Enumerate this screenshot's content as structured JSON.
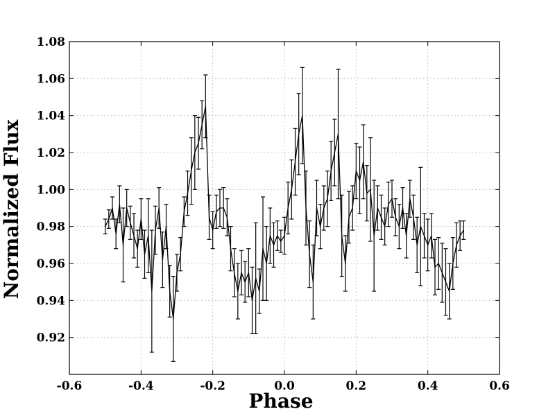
{
  "chart_data": {
    "type": "line",
    "title": "",
    "xlabel": "Phase",
    "ylabel": "Normalized Flux",
    "xlim": [
      -0.6,
      0.6
    ],
    "ylim": [
      0.9,
      1.08
    ],
    "xticks": [
      -0.6,
      -0.4,
      -0.2,
      0.0,
      0.2,
      0.4,
      0.6
    ],
    "xtick_labels": [
      "-0.6",
      "-0.4",
      "-0.2",
      "0.0",
      "0.2",
      "0.4",
      "0.6"
    ],
    "yticks": [
      0.92,
      0.94,
      0.96,
      0.98,
      1.0,
      1.02,
      1.04,
      1.06,
      1.08
    ],
    "ytick_labels": [
      "0.92",
      "0.94",
      "0.96",
      "0.98",
      "1.00",
      "1.02",
      "1.04",
      "1.06",
      "1.08"
    ],
    "grid": true,
    "line_color": "#000000",
    "error_bars": true,
    "series": [
      {
        "x": [
          -0.5,
          -0.49,
          -0.48,
          -0.47,
          -0.46,
          -0.45,
          -0.44,
          -0.43,
          -0.42,
          -0.41,
          -0.4,
          -0.39,
          -0.38,
          -0.37,
          -0.36,
          -0.35,
          -0.34,
          -0.33,
          -0.32,
          -0.31,
          -0.3,
          -0.29,
          -0.28,
          -0.27,
          -0.26,
          -0.25,
          -0.24,
          -0.23,
          -0.22,
          -0.21,
          -0.2,
          -0.19,
          -0.18,
          -0.17,
          -0.16,
          -0.15,
          -0.14,
          -0.13,
          -0.12,
          -0.11,
          -0.1,
          -0.09,
          -0.08,
          -0.07,
          -0.06,
          -0.05,
          -0.04,
          -0.03,
          -0.02,
          -0.01,
          0.0,
          0.01,
          0.02,
          0.03,
          0.04,
          0.05,
          0.06,
          0.07,
          0.08,
          0.09,
          0.1,
          0.11,
          0.12,
          0.13,
          0.14,
          0.15,
          0.16,
          0.17,
          0.18,
          0.19,
          0.2,
          0.21,
          0.22,
          0.23,
          0.24,
          0.25,
          0.26,
          0.27,
          0.28,
          0.29,
          0.3,
          0.31,
          0.32,
          0.33,
          0.34,
          0.35,
          0.36,
          0.37,
          0.38,
          0.39,
          0.4,
          0.41,
          0.42,
          0.43,
          0.44,
          0.45,
          0.46,
          0.47,
          0.48,
          0.49,
          0.5
        ],
        "y": [
          0.98,
          0.984,
          0.99,
          0.976,
          0.992,
          0.97,
          0.99,
          0.982,
          0.975,
          0.968,
          0.984,
          0.965,
          0.975,
          0.945,
          0.978,
          0.99,
          0.962,
          0.98,
          0.945,
          0.93,
          0.955,
          0.965,
          0.988,
          0.998,
          1.01,
          1.02,
          1.025,
          1.035,
          1.045,
          0.985,
          0.978,
          0.988,
          0.99,
          0.99,
          0.985,
          0.968,
          0.955,
          0.945,
          0.955,
          0.95,
          0.955,
          0.94,
          0.952,
          0.945,
          0.968,
          0.96,
          0.975,
          0.97,
          0.975,
          0.972,
          0.975,
          0.99,
          1.0,
          1.015,
          1.03,
          1.04,
          0.99,
          0.965,
          0.95,
          0.99,
          0.98,
          0.99,
          0.995,
          1.01,
          1.02,
          1.03,
          0.975,
          0.96,
          0.985,
          0.99,
          1.01,
          1.005,
          1.015,
          0.998,
          1.0,
          0.975,
          0.99,
          0.985,
          0.98,
          0.992,
          0.995,
          0.985,
          0.98,
          0.99,
          0.975,
          0.995,
          0.985,
          0.97,
          0.98,
          0.975,
          0.97,
          0.975,
          0.958,
          0.96,
          0.955,
          0.95,
          0.945,
          0.96,
          0.97,
          0.975,
          0.978
        ],
        "yerr": [
          0.004,
          0.005,
          0.006,
          0.008,
          0.01,
          0.02,
          0.01,
          0.009,
          0.012,
          0.01,
          0.011,
          0.013,
          0.02,
          0.033,
          0.013,
          0.011,
          0.015,
          0.012,
          0.014,
          0.023,
          0.01,
          0.009,
          0.008,
          0.012,
          0.018,
          0.02,
          0.014,
          0.013,
          0.017,
          0.012,
          0.01,
          0.009,
          0.01,
          0.011,
          0.01,
          0.012,
          0.013,
          0.015,
          0.012,
          0.011,
          0.013,
          0.018,
          0.03,
          0.012,
          0.028,
          0.02,
          0.015,
          0.012,
          0.008,
          0.006,
          0.01,
          0.014,
          0.016,
          0.018,
          0.022,
          0.026,
          0.02,
          0.018,
          0.02,
          0.015,
          0.012,
          0.012,
          0.015,
          0.016,
          0.018,
          0.035,
          0.022,
          0.015,
          0.014,
          0.012,
          0.015,
          0.018,
          0.02,
          0.015,
          0.028,
          0.03,
          0.012,
          0.012,
          0.01,
          0.012,
          0.01,
          0.01,
          0.012,
          0.011,
          0.012,
          0.01,
          0.012,
          0.015,
          0.032,
          0.012,
          0.014,
          0.012,
          0.015,
          0.014,
          0.016,
          0.018,
          0.015,
          0.014,
          0.012,
          0.008,
          0.005
        ]
      }
    ]
  }
}
